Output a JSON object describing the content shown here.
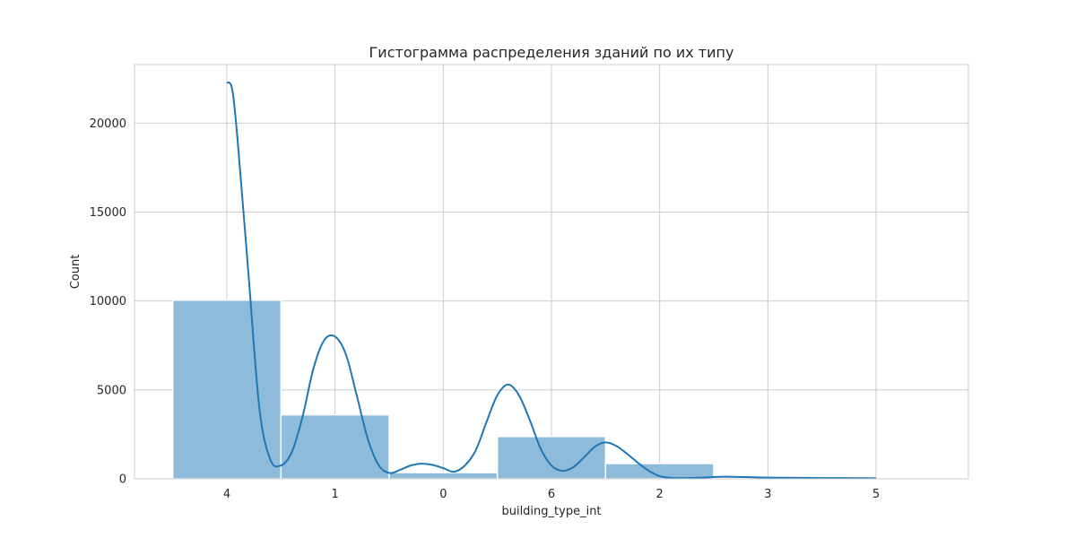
{
  "chart_data": {
    "type": "bar",
    "title": "Гистограмма распределения зданий по их типу",
    "xlabel": "building_type_int",
    "ylabel": "Count",
    "categories": [
      "4",
      "1",
      "0",
      "6",
      "2",
      "3",
      "5"
    ],
    "values": [
      10050,
      3600,
      350,
      2380,
      860,
      30,
      20
    ],
    "ylim": [
      0,
      23300
    ],
    "yticks": [
      0,
      5000,
      10000,
      15000,
      20000
    ],
    "ytick_labels": [
      "0",
      "5000",
      "10000",
      "15000",
      "20000"
    ],
    "grid": true,
    "bar_color": "#8fbbdb",
    "bar_edge_color": "#ffffff",
    "kde_color": "#1f77b4",
    "grid_color": "#cccccc",
    "kde": {
      "x": [
        0.0,
        0.05,
        0.1,
        0.2,
        0.3,
        0.4,
        0.5,
        0.6,
        0.7,
        0.8,
        0.9,
        1.0,
        1.1,
        1.2,
        1.3,
        1.4,
        1.5,
        1.6,
        1.7,
        1.8,
        1.9,
        2.0,
        2.1,
        2.2,
        2.3,
        2.4,
        2.5,
        2.6,
        2.7,
        2.8,
        2.9,
        3.0,
        3.1,
        3.2,
        3.3,
        3.4,
        3.5,
        3.6,
        3.7,
        3.8,
        3.9,
        4.0,
        4.1,
        4.2,
        4.3,
        4.4,
        4.5,
        4.6,
        4.8,
        5.0,
        5.2,
        5.4,
        5.6,
        5.8,
        6.0
      ],
      "y": [
        22300,
        21900,
        19000,
        11500,
        4000,
        1100,
        750,
        1500,
        3500,
        6200,
        7800,
        8000,
        7000,
        4700,
        2300,
        800,
        330,
        500,
        750,
        850,
        780,
        600,
        400,
        750,
        1600,
        3200,
        4700,
        5300,
        4700,
        3300,
        1700,
        750,
        450,
        650,
        1200,
        1800,
        2050,
        1850,
        1400,
        900,
        450,
        150,
        60,
        40,
        50,
        70,
        100,
        120,
        100,
        70,
        60,
        50,
        45,
        40,
        30
      ]
    }
  }
}
